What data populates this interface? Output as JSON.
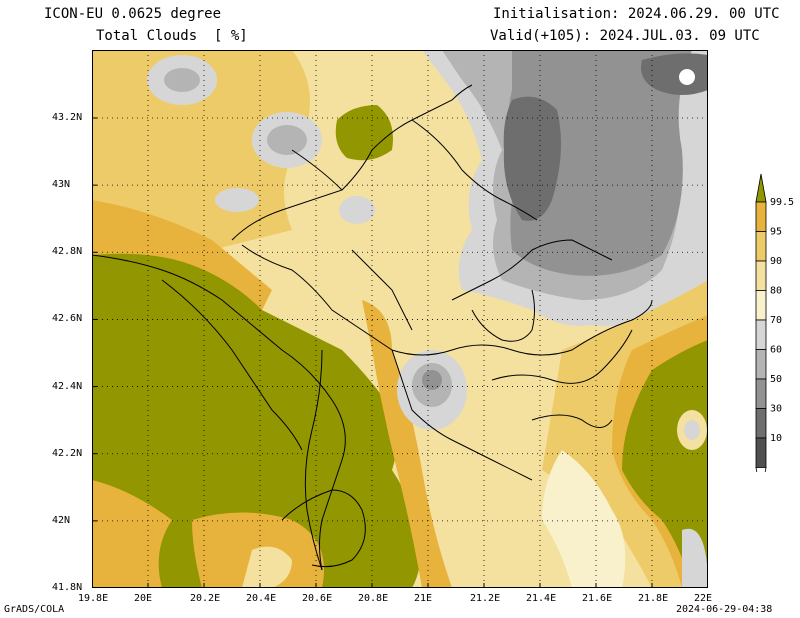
{
  "header": {
    "model": "ICON-EU 0.0625 degree",
    "variable": "Total Clouds  [ %]",
    "init": "Initialisation: 2024.06.29. 00 UTC",
    "valid": "Valid(+105): 2024.JUL.03. 09 UTC"
  },
  "footer": {
    "credit": "GrADS/COLA",
    "timestamp": "2024-06-29-04:38"
  },
  "map": {
    "lon_labels": [
      "19.8E",
      "20E",
      "20.2E",
      "20.4E",
      "20.6E",
      "20.8E",
      "21E",
      "21.2E",
      "21.4E",
      "21.6E",
      "21.8E",
      "22E"
    ],
    "lat_labels": [
      "43.2N",
      "43N",
      "42.8N",
      "42.6N",
      "42.4N",
      "42.2N",
      "42N",
      "41.8N"
    ],
    "grid": true
  },
  "legend": {
    "labels": [
      "99.5",
      "95",
      "90",
      "80",
      "70",
      "60",
      "50",
      "30",
      "10"
    ],
    "colors": [
      "#929600",
      "#e8b33d",
      "#eecb69",
      "#f4e19f",
      "#f8f1cc",
      "#d6d6d6",
      "#b4b4b4",
      "#929292",
      "#6e6e6e",
      "#505050",
      "#ffffff"
    ],
    "placement": "right"
  }
}
